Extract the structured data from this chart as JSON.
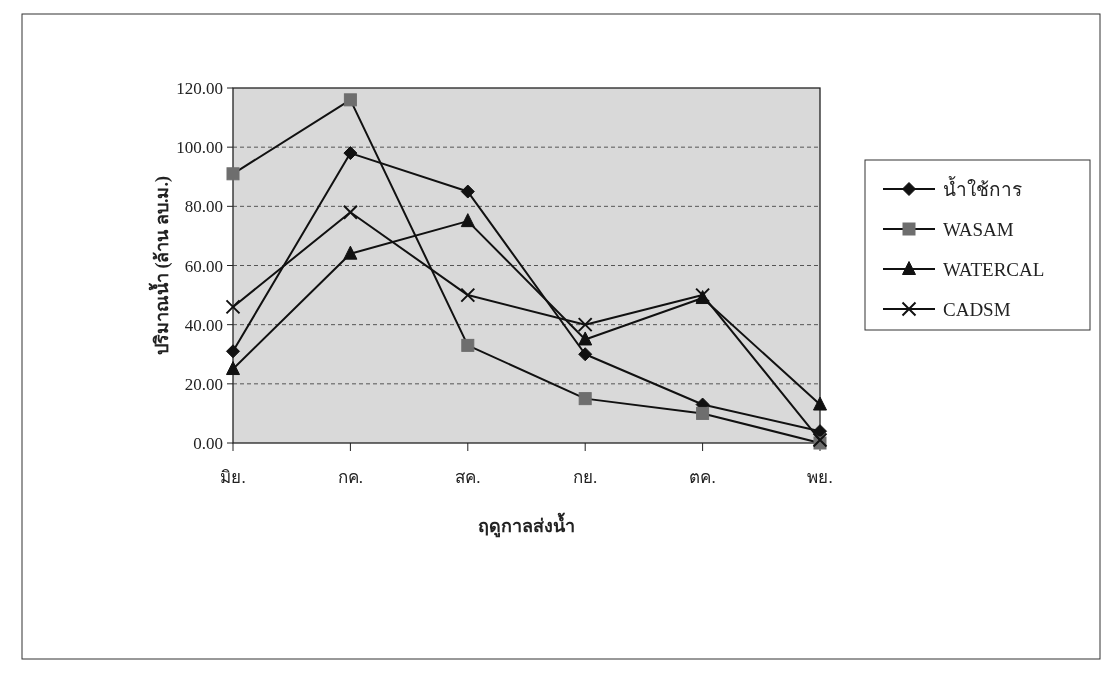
{
  "chart_data": {
    "type": "line",
    "xlabel": "ฤดูกาลส่งน้ำ",
    "ylabel": "ปริมาณน้ำ (ล้าน ลบ.ม.)",
    "categories": [
      "มิย.",
      "กค.",
      "สค.",
      "กย.",
      "ตค.",
      "พย."
    ],
    "series": [
      {
        "name": "น้ำใช้การ",
        "color": "#111111",
        "marker": "diamond",
        "values": [
          31,
          98,
          85,
          30,
          13,
          4
        ]
      },
      {
        "name": "WASAM",
        "color": "#6e6e6e",
        "marker": "square",
        "values": [
          91,
          116,
          33,
          15,
          10,
          0
        ]
      },
      {
        "name": "WATERCAL",
        "color": "#111111",
        "marker": "triangle",
        "values": [
          25,
          64,
          75,
          35,
          49,
          13
        ]
      },
      {
        "name": "CADSM",
        "color": "#111111",
        "marker": "cross",
        "values": [
          46,
          78,
          50,
          40,
          50,
          1
        ]
      }
    ],
    "ylim": [
      0,
      120
    ],
    "yticks": [
      {
        "value": 0,
        "label": "0.00"
      },
      {
        "value": 20,
        "label": "20.00"
      },
      {
        "value": 40,
        "label": "40.00"
      },
      {
        "value": 60,
        "label": "60.00"
      },
      {
        "value": 80,
        "label": "80.00"
      },
      {
        "value": 100,
        "label": "100.00"
      },
      {
        "value": 120,
        "label": "120.00"
      }
    ],
    "grid": "y",
    "legend": "right",
    "line_style": "solid"
  }
}
